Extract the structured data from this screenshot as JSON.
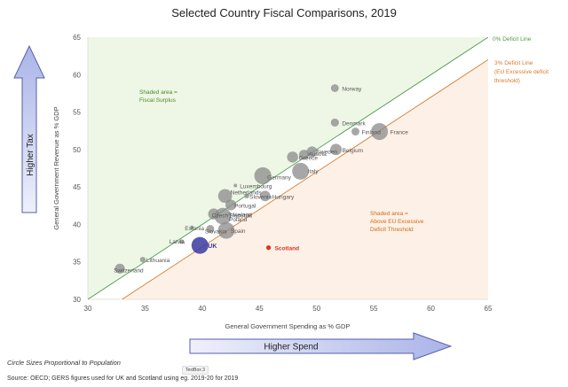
{
  "chart_data": {
    "type": "scatter",
    "title": "Selected Country Fiscal Comparisons, 2019",
    "xlabel": "General Government Spending as % GDP",
    "ylabel": "General Government Revenue as % GDP",
    "xlim": [
      30,
      65
    ],
    "ylim": [
      30,
      65
    ],
    "xticks": [
      "30",
      "35",
      "40",
      "45",
      "50",
      "55",
      "60",
      "65"
    ],
    "yticks": [
      "30",
      "35",
      "40",
      "45",
      "50",
      "55",
      "60",
      "65"
    ],
    "lines": [
      {
        "name": "0% Deficit Line",
        "offset": 0,
        "color": "#4a9a4a"
      },
      {
        "name": "3% Deficit Line\n(EU Excessive deficit\nthreshold)",
        "offset": 3,
        "color": "#d97a2b"
      }
    ],
    "annotations": [
      {
        "text": "Shaded area =\nFiscal Surplus",
        "color": "#4a8a2a"
      },
      {
        "text": "Shaded area =\nAbove EU Excessive\nDeficit Threshold",
        "color": "#d06a1a"
      }
    ],
    "points": [
      {
        "label": "Norway",
        "x": 51.6,
        "y": 58.2,
        "size": 5.4
      },
      {
        "label": "Denmark",
        "x": 51.6,
        "y": 53.6,
        "size": 5.8
      },
      {
        "label": "Finland",
        "x": 53.4,
        "y": 52.4,
        "size": 5.5
      },
      {
        "label": "France",
        "x": 55.5,
        "y": 52.4,
        "size": 67
      },
      {
        "label": "Sweden",
        "x": 49.6,
        "y": 49.7,
        "size": 10.2
      },
      {
        "label": "Austria",
        "x": 48.9,
        "y": 49.3,
        "size": 8.9
      },
      {
        "label": "Greece",
        "x": 47.9,
        "y": 49.0,
        "size": 10.7
      },
      {
        "label": "Belgium",
        "x": 51.7,
        "y": 50.0,
        "size": 11.5
      },
      {
        "label": "Germany",
        "x": 45.3,
        "y": 46.5,
        "size": 83
      },
      {
        "label": "Italy",
        "x": 48.6,
        "y": 47.1,
        "size": 60
      },
      {
        "label": "Luxembourg",
        "x": 42.9,
        "y": 45.2,
        "size": 0.6
      },
      {
        "label": "Netherlands",
        "x": 42.0,
        "y": 43.8,
        "size": 17
      },
      {
        "label": "Slovenia",
        "x": 43.9,
        "y": 43.8,
        "size": 2.1
      },
      {
        "label": "Hungary",
        "x": 45.5,
        "y": 43.8,
        "size": 9.8
      },
      {
        "label": "Portugal",
        "x": 42.5,
        "y": 42.6,
        "size": 10.3
      },
      {
        "label": "Iceland",
        "x": 42.4,
        "y": 41.4,
        "size": 0.4
      },
      {
        "label": "Czech Republic",
        "x": 41.0,
        "y": 41.4,
        "size": 10.7
      },
      {
        "label": "Poland",
        "x": 41.8,
        "y": 41.1,
        "size": 38
      },
      {
        "label": "Estonia",
        "x": 39.1,
        "y": 39.6,
        "size": 1.3
      },
      {
        "label": "Slovakia",
        "x": 40.7,
        "y": 39.4,
        "size": 5.5
      },
      {
        "label": "Spain",
        "x": 42.1,
        "y": 39.2,
        "size": 47
      },
      {
        "label": "Latvia",
        "x": 38.2,
        "y": 37.7,
        "size": 1.9
      },
      {
        "label": "UK",
        "x": 39.8,
        "y": 37.2,
        "size": 67
      },
      {
        "label": "Scotland",
        "x": 45.8,
        "y": 36.9,
        "size": 5.5
      },
      {
        "label": "Lithuania",
        "x": 34.8,
        "y": 35.3,
        "size": 2.8
      },
      {
        "label": "Switzerland",
        "x": 32.8,
        "y": 34.1,
        "size": 8.6
      }
    ]
  },
  "arrows": {
    "higher_tax": "Higher Tax",
    "higher_spend": "Higher Spend"
  },
  "notes": {
    "circle_sizes": "Circle Sizes Proportional to Population",
    "source": "Source: OECD; GERS figures used for UK and Scotland using eg. 2019-20 for 2019",
    "textbox": "TextBox 3"
  },
  "colors": {
    "default_point": "#8a8a8a",
    "uk": "#3a3aa0",
    "scotland": "#e0301e",
    "surplus_shade": "#eef7e6",
    "deficit_shade": "#fdf1e7",
    "arrow_fill": "#c8cef0",
    "arrow_stroke": "#5560a8"
  }
}
